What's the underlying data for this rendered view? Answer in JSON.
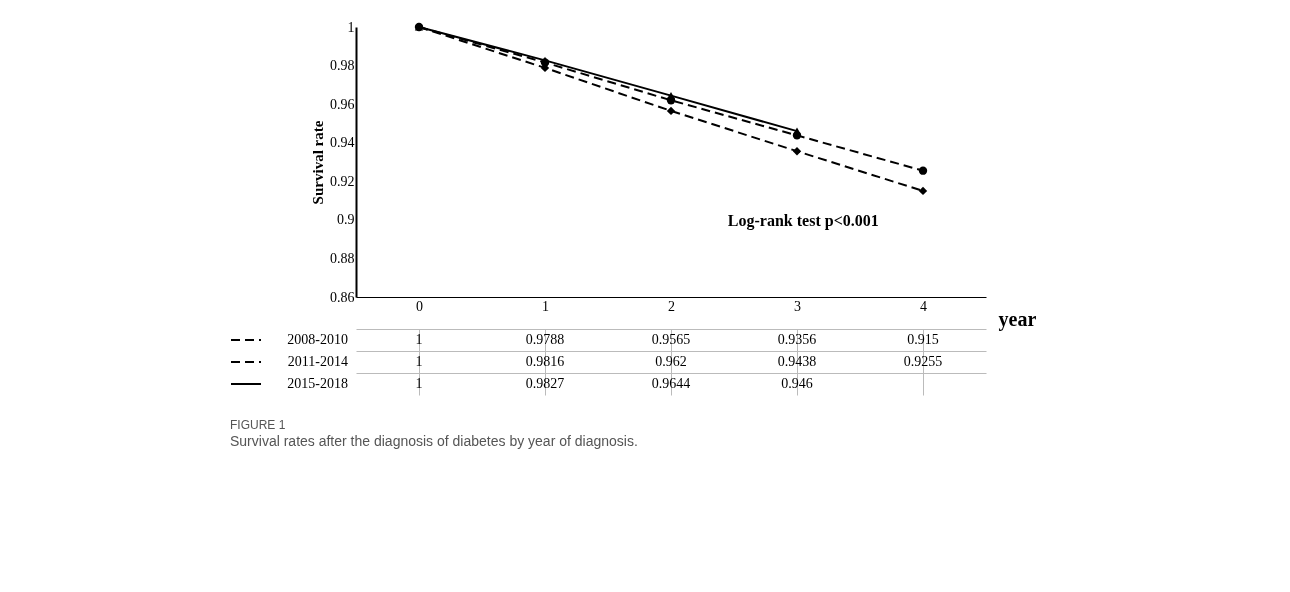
{
  "chart_data": {
    "type": "line",
    "title": "FIGURE 1",
    "subtitle": "Survival rates after the diagnosis of diabetes by year of diagnosis.",
    "ylabel": "Survival rate",
    "xlabel": "year",
    "categories": [
      "0",
      "1",
      "2",
      "3",
      "4"
    ],
    "series": [
      {
        "name": "2008-2010",
        "color": "#000000",
        "line_style": "dashed",
        "marker": "diamond",
        "values": [
          1,
          0.9788,
          0.9565,
          0.9356,
          0.915
        ]
      },
      {
        "name": "2011-2014",
        "color": "#000000",
        "line_style": "dashed",
        "marker": "circle",
        "values": [
          1,
          0.9816,
          0.962,
          0.9438,
          0.9255
        ]
      },
      {
        "name": "2015-2018",
        "color": "#000000",
        "line_style": "solid",
        "marker": "triangle",
        "values": [
          1,
          0.9827,
          0.9644,
          0.946,
          null
        ]
      }
    ],
    "ylim": [
      0.86,
      1
    ],
    "yticks": [
      0.86,
      0.88,
      0.9,
      0.92,
      0.94,
      0.96,
      0.98,
      1
    ],
    "grid": false,
    "data_labels": true,
    "legend": "bottom left",
    "annotations": [
      "Log-rank test p<0.001"
    ]
  }
}
